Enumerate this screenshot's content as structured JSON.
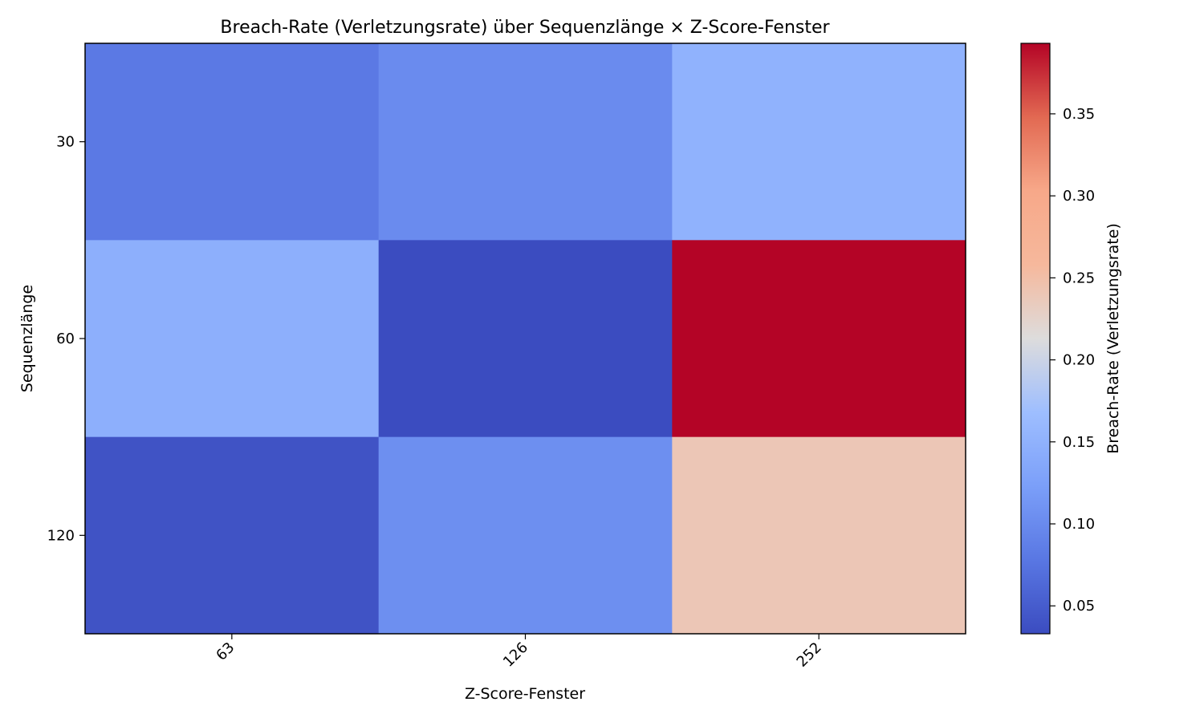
{
  "chart_data": {
    "type": "heatmap",
    "title": "Breach-Rate (Verletzungsrate) über Sequenzlänge × Z-Score-Fenster",
    "xlabel": "Z-Score-Fenster",
    "ylabel": "Sequenzlänge",
    "x_categories": [
      "63",
      "126",
      "252"
    ],
    "y_categories": [
      "30",
      "60",
      "120"
    ],
    "values": [
      [
        0.08,
        0.1,
        0.15
      ],
      [
        0.146,
        0.033,
        0.393
      ],
      [
        0.04,
        0.105,
        0.24
      ]
    ],
    "colormap": "coolwarm",
    "colorbar": {
      "label": "Breach-Rate (Verletzungsrate)",
      "range": [
        0.033,
        0.393
      ],
      "ticks": [
        0.05,
        0.1,
        0.15,
        0.2,
        0.25,
        0.3,
        0.35
      ],
      "tick_labels": [
        "0.05",
        "0.10",
        "0.15",
        "0.20",
        "0.25",
        "0.30",
        "0.35"
      ]
    },
    "grid": false
  }
}
